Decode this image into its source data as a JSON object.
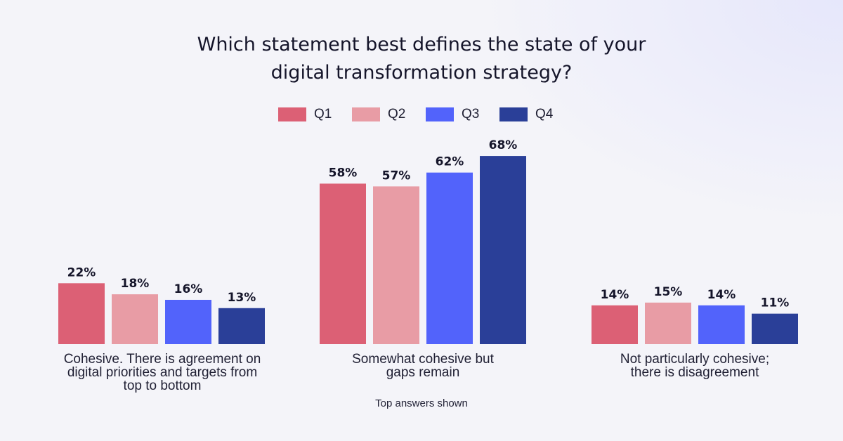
{
  "chart_data": {
    "type": "bar",
    "title": "Which statement best defines the state of your digital transformation strategy?",
    "title_lines": [
      "Which statement best defines the state of your",
      "digital transformation strategy?"
    ],
    "categories": [
      "Cohesive. There is agreement on digital priorities and targets from top to bottom",
      "Somewhat cohesive but gaps remain",
      "Not particularly cohesive; there is disagreement"
    ],
    "category_lines": [
      [
        "Cohesive. There is agreement on",
        "digital priorities and targets from",
        "top to bottom"
      ],
      [
        "Somewhat cohesive but",
        "gaps remain"
      ],
      [
        "Not particularly cohesive;",
        "there is disagreement"
      ]
    ],
    "series": [
      {
        "name": "Q1",
        "color": "#dc6075",
        "values": [
          22,
          58,
          14
        ]
      },
      {
        "name": "Q2",
        "color": "#e89ca5",
        "values": [
          18,
          57,
          15
        ]
      },
      {
        "name": "Q3",
        "color": "#5263fb",
        "values": [
          16,
          62,
          14
        ]
      },
      {
        "name": "Q4",
        "color": "#2a3f98",
        "values": [
          13,
          68,
          11
        ]
      }
    ],
    "value_suffix": "%",
    "ylim": [
      0,
      100
    ],
    "xlabel": "",
    "ylabel": "",
    "grid": false,
    "legend_position": "top-center",
    "footnote": "Top answers shown"
  }
}
